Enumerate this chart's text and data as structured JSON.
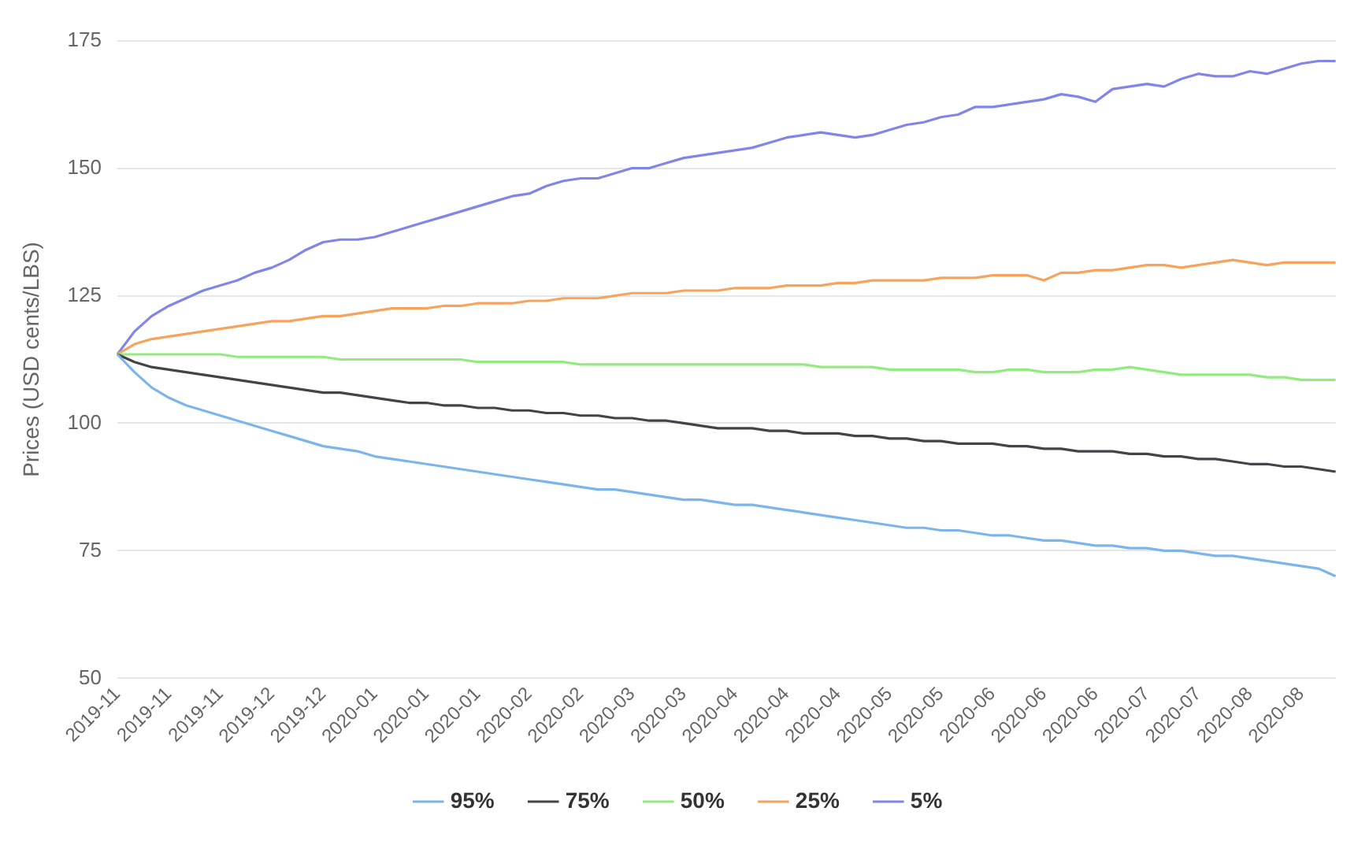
{
  "chart_data": {
    "type": "line",
    "ylabel": "Prices (USD cents/LBS)",
    "ylim": [
      50,
      175
    ],
    "yticks": [
      50,
      75,
      100,
      125,
      150,
      175
    ],
    "grid": "y",
    "legend": "bottom",
    "marker": "none",
    "categories": [
      "2019-11",
      null,
      null,
      "2019-11",
      null,
      null,
      "2019-11",
      null,
      null,
      "2019-12",
      null,
      null,
      "2019-12",
      null,
      null,
      "2020-01",
      null,
      null,
      "2020-01",
      null,
      null,
      "2020-01",
      null,
      null,
      "2020-02",
      null,
      null,
      "2020-02",
      null,
      null,
      "2020-03",
      null,
      null,
      "2020-03",
      null,
      null,
      "2020-04",
      null,
      null,
      "2020-04",
      null,
      null,
      "2020-04",
      null,
      null,
      "2020-05",
      null,
      null,
      "2020-05",
      null,
      null,
      "2020-06",
      null,
      null,
      "2020-06",
      null,
      null,
      "2020-06",
      null,
      null,
      "2020-07",
      null,
      null,
      "2020-07",
      null,
      null,
      "2020-08",
      null,
      null,
      "2020-08",
      null,
      null
    ],
    "series": [
      {
        "name": "95%",
        "color": "#7cb5ec",
        "values": [
          113.5,
          110,
          107,
          105,
          103.5,
          102.5,
          101.5,
          100.5,
          99.5,
          98.5,
          97.5,
          96.5,
          95.5,
          95,
          94.5,
          93.5,
          93,
          92.5,
          92,
          91.5,
          91,
          90.5,
          90,
          89.5,
          89,
          88.5,
          88,
          87.5,
          87,
          87,
          86.5,
          86,
          85.5,
          85,
          85,
          84.5,
          84,
          84,
          83.5,
          83,
          82.5,
          82,
          81.5,
          81,
          80.5,
          80,
          79.5,
          79.5,
          79,
          79,
          78.5,
          78,
          78,
          77.5,
          77,
          77,
          76.5,
          76,
          76,
          75.5,
          75.5,
          75,
          75,
          74.5,
          74,
          74,
          73.5,
          73,
          72.5,
          72,
          71.5,
          70
        ]
      },
      {
        "name": "75%",
        "color": "#434348",
        "values": [
          113.5,
          112,
          111,
          110.5,
          110,
          109.5,
          109,
          108.5,
          108,
          107.5,
          107,
          106.5,
          106,
          106,
          105.5,
          105,
          104.5,
          104,
          104,
          103.5,
          103.5,
          103,
          103,
          102.5,
          102.5,
          102,
          102,
          101.5,
          101.5,
          101,
          101,
          100.5,
          100.5,
          100,
          99.5,
          99,
          99,
          99,
          98.5,
          98.5,
          98,
          98,
          98,
          97.5,
          97.5,
          97,
          97,
          96.5,
          96.5,
          96,
          96,
          96,
          95.5,
          95.5,
          95,
          95,
          94.5,
          94.5,
          94.5,
          94,
          94,
          93.5,
          93.5,
          93,
          93,
          92.5,
          92,
          92,
          91.5,
          91.5,
          91,
          90.5
        ]
      },
      {
        "name": "50%",
        "color": "#90ed7d",
        "values": [
          113.5,
          113.5,
          113.5,
          113.5,
          113.5,
          113.5,
          113.5,
          113,
          113,
          113,
          113,
          113,
          113,
          112.5,
          112.5,
          112.5,
          112.5,
          112.5,
          112.5,
          112.5,
          112.5,
          112,
          112,
          112,
          112,
          112,
          112,
          111.5,
          111.5,
          111.5,
          111.5,
          111.5,
          111.5,
          111.5,
          111.5,
          111.5,
          111.5,
          111.5,
          111.5,
          111.5,
          111.5,
          111,
          111,
          111,
          111,
          110.5,
          110.5,
          110.5,
          110.5,
          110.5,
          110,
          110,
          110.5,
          110.5,
          110,
          110,
          110,
          110.5,
          110.5,
          111,
          110.5,
          110,
          109.5,
          109.5,
          109.5,
          109.5,
          109.5,
          109,
          109,
          108.5,
          108.5,
          108.5
        ]
      },
      {
        "name": "25%",
        "color": "#f7a35c",
        "values": [
          113.5,
          115.5,
          116.5,
          117,
          117.5,
          118,
          118.5,
          119,
          119.5,
          120,
          120,
          120.5,
          121,
          121,
          121.5,
          122,
          122.5,
          122.5,
          122.5,
          123,
          123,
          123.5,
          123.5,
          123.5,
          124,
          124,
          124.5,
          124.5,
          124.5,
          125,
          125.5,
          125.5,
          125.5,
          126,
          126,
          126,
          126.5,
          126.5,
          126.5,
          127,
          127,
          127,
          127.5,
          127.5,
          128,
          128,
          128,
          128,
          128.5,
          128.5,
          128.5,
          129,
          129,
          129,
          128,
          129.5,
          129.5,
          130,
          130,
          130.5,
          131,
          131,
          130.5,
          131,
          131.5,
          132,
          131.5,
          131,
          131.5,
          131.5,
          131.5,
          131.5
        ]
      },
      {
        "name": "5%",
        "color": "#8085e9",
        "values": [
          113.5,
          118,
          121,
          123,
          124.5,
          126,
          127,
          128,
          129.5,
          130.5,
          132,
          134,
          135.5,
          136,
          136,
          136.5,
          137.5,
          138.5,
          139.5,
          140.5,
          141.5,
          142.5,
          143.5,
          144.5,
          145,
          146.5,
          147.5,
          148,
          148,
          149,
          150,
          150,
          151,
          152,
          152.5,
          153,
          153.5,
          154,
          155,
          156,
          156.5,
          157,
          156.5,
          156,
          156.5,
          157.5,
          158.5,
          159,
          160,
          160.5,
          162,
          162,
          162.5,
          163,
          163.5,
          164.5,
          164,
          163,
          165.5,
          166,
          166.5,
          166,
          167.5,
          168.5,
          168,
          168,
          169,
          168.5,
          169.5,
          170.5,
          171,
          171
        ]
      }
    ]
  }
}
